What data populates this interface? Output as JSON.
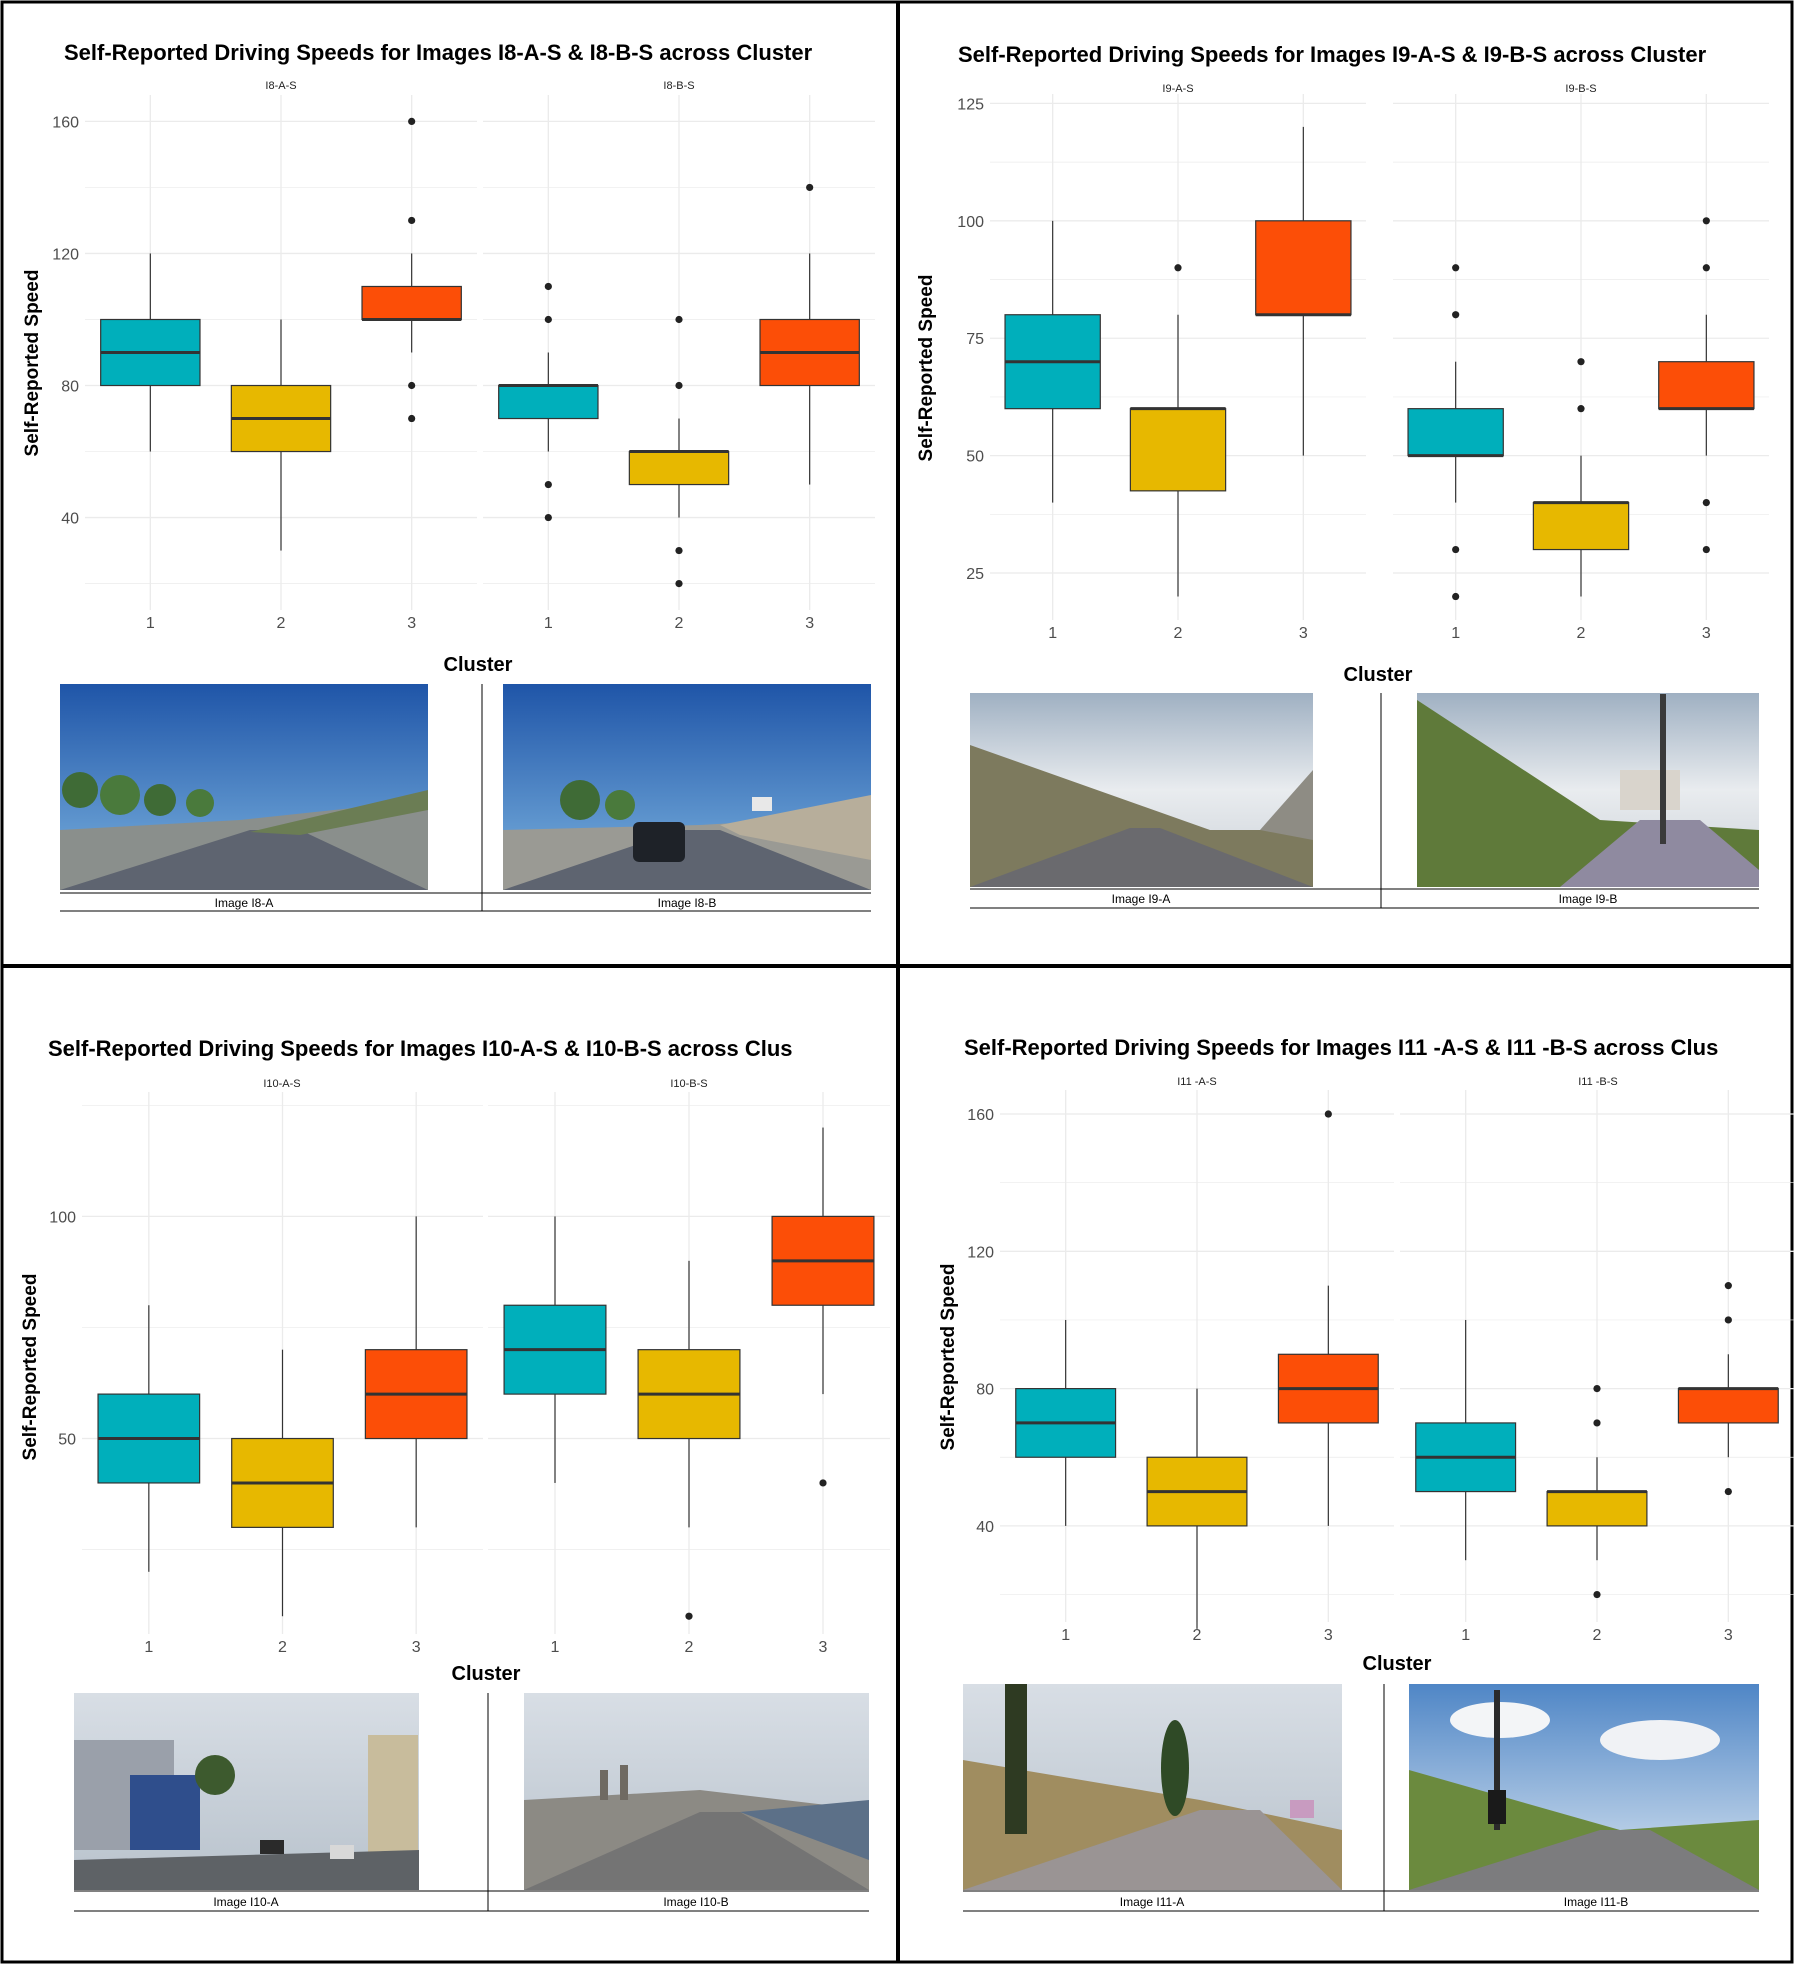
{
  "colors": {
    "cluster1": "#00AFBB",
    "cluster2": "#E7B800",
    "cluster3": "#FC4E07",
    "grid": "#EBEBEB",
    "median": "#333333",
    "border": "#000000"
  },
  "chart_data": [
    {
      "type": "boxplot",
      "title": "Self-Reported Driving Speeds for Images I8-A-S & I8-B-S across Cluster",
      "ylabel": "Self-Reported Speed",
      "xlabel": "Cluster",
      "ylim": [
        12,
        168
      ],
      "yticks": [
        40,
        80,
        120,
        160
      ],
      "grid": true,
      "facets": [
        {
          "name": "I8-A-S",
          "boxes": [
            {
              "cluster": "1",
              "min": 60,
              "q1": 80,
              "median": 90,
              "q3": 100,
              "max": 120,
              "outliers": []
            },
            {
              "cluster": "2",
              "min": 30,
              "q1": 60,
              "median": 70,
              "q3": 80,
              "max": 100,
              "outliers": []
            },
            {
              "cluster": "3",
              "min": 90,
              "q1": 100,
              "median": 100,
              "q3": 110,
              "max": 120,
              "outliers": [
                70,
                80,
                130,
                160
              ]
            }
          ]
        },
        {
          "name": "I8-B-S",
          "boxes": [
            {
              "cluster": "1",
              "min": 60,
              "q1": 70,
              "median": 80,
              "q3": 80,
              "max": 90,
              "outliers": [
                40,
                50,
                100,
                110
              ]
            },
            {
              "cluster": "2",
              "min": 40,
              "q1": 50,
              "median": 60,
              "q3": 60,
              "max": 70,
              "outliers": [
                20,
                30,
                80,
                100
              ]
            },
            {
              "cluster": "3",
              "min": 50,
              "q1": 80,
              "median": 90,
              "q3": 100,
              "max": 120,
              "outliers": [
                140
              ]
            }
          ]
        }
      ],
      "photo_labels": [
        "Image I8-A",
        "Image I8-B"
      ]
    },
    {
      "type": "boxplot",
      "title": "Self-Reported Driving Speeds for Images I9-A-S & I9-B-S across Cluster",
      "ylabel": "Self-Reported Speed",
      "xlabel": "Cluster",
      "ylim": [
        15,
        127
      ],
      "yticks": [
        25,
        50,
        75,
        100,
        125
      ],
      "grid": true,
      "facets": [
        {
          "name": "I9-A-S",
          "boxes": [
            {
              "cluster": "1",
              "min": 40,
              "q1": 60,
              "median": 70,
              "q3": 80,
              "max": 100,
              "outliers": []
            },
            {
              "cluster": "2",
              "min": 20,
              "q1": 42.5,
              "median": 60,
              "q3": 60,
              "max": 80,
              "outliers": [
                90
              ]
            },
            {
              "cluster": "3",
              "min": 50,
              "q1": 80,
              "median": 80,
              "q3": 100,
              "max": 120,
              "outliers": []
            }
          ]
        },
        {
          "name": "I9-B-S",
          "boxes": [
            {
              "cluster": "1",
              "min": 40,
              "q1": 50,
              "median": 50,
              "q3": 60,
              "max": 70,
              "outliers": [
                20,
                30,
                80,
                90
              ]
            },
            {
              "cluster": "2",
              "min": 20,
              "q1": 30,
              "median": 40,
              "q3": 40,
              "max": 50,
              "outliers": [
                60,
                70
              ]
            },
            {
              "cluster": "3",
              "min": 50,
              "q1": 60,
              "median": 60,
              "q3": 70,
              "max": 80,
              "outliers": [
                30,
                40,
                90,
                100
              ]
            }
          ]
        }
      ],
      "photo_labels": [
        "Image I9-A",
        "Image I9-B"
      ]
    },
    {
      "type": "boxplot",
      "title": "Self-Reported Driving Speeds for Images I10-A-S & I10-B-S across Clus",
      "ylabel": "Self-Reported Speed",
      "xlabel": "Cluster",
      "ylim": [
        6,
        128
      ],
      "yticks": [
        50,
        100
      ],
      "grid": true,
      "facets": [
        {
          "name": "I10-A-S",
          "boxes": [
            {
              "cluster": "1",
              "min": 20,
              "q1": 40,
              "median": 50,
              "q3": 60,
              "max": 80,
              "outliers": []
            },
            {
              "cluster": "2",
              "min": 10,
              "q1": 30,
              "median": 40,
              "q3": 50,
              "max": 70,
              "outliers": []
            },
            {
              "cluster": "3",
              "min": 30,
              "q1": 50,
              "median": 60,
              "q3": 70,
              "max": 100,
              "outliers": []
            }
          ]
        },
        {
          "name": "I10-B-S",
          "boxes": [
            {
              "cluster": "1",
              "min": 40,
              "q1": 60,
              "median": 70,
              "q3": 80,
              "max": 100,
              "outliers": []
            },
            {
              "cluster": "2",
              "min": 30,
              "q1": 50,
              "median": 60,
              "q3": 70,
              "max": 90,
              "outliers": [
                10
              ]
            },
            {
              "cluster": "3",
              "min": 60,
              "q1": 80,
              "median": 90,
              "q3": 100,
              "max": 120,
              "outliers": [
                40
              ]
            }
          ]
        }
      ],
      "photo_labels": [
        "Image I10-A",
        "Image I10-B"
      ]
    },
    {
      "type": "boxplot",
      "title": "Self-Reported Driving Speeds for Images I11 -A-S & I11 -B-S across Clus",
      "ylabel": "Self-Reported Speed",
      "xlabel": "Cluster",
      "ylim": [
        12,
        167
      ],
      "yticks": [
        40,
        80,
        120,
        160
      ],
      "grid": true,
      "facets": [
        {
          "name": "I11 -A-S",
          "boxes": [
            {
              "cluster": "1",
              "min": 40,
              "q1": 60,
              "median": 70,
              "q3": 80,
              "max": 100,
              "outliers": []
            },
            {
              "cluster": "2",
              "min": 10,
              "q1": 40,
              "median": 50,
              "q3": 60,
              "max": 80,
              "outliers": []
            },
            {
              "cluster": "3",
              "min": 40,
              "q1": 70,
              "median": 80,
              "q3": 90,
              "max": 110,
              "outliers": [
                160
              ]
            }
          ]
        },
        {
          "name": "I11 -B-S",
          "boxes": [
            {
              "cluster": "1",
              "min": 30,
              "q1": 50,
              "median": 60,
              "q3": 70,
              "max": 100,
              "outliers": []
            },
            {
              "cluster": "2",
              "min": 30,
              "q1": 40,
              "median": 50,
              "q3": 50,
              "max": 60,
              "outliers": [
                20,
                70,
                80
              ]
            },
            {
              "cluster": "3",
              "min": 60,
              "q1": 70,
              "median": 80,
              "q3": 80,
              "max": 90,
              "outliers": [
                50,
                100,
                110
              ]
            }
          ]
        }
      ],
      "photo_labels": [
        "Image I11-A",
        "Image I11-B"
      ]
    }
  ]
}
